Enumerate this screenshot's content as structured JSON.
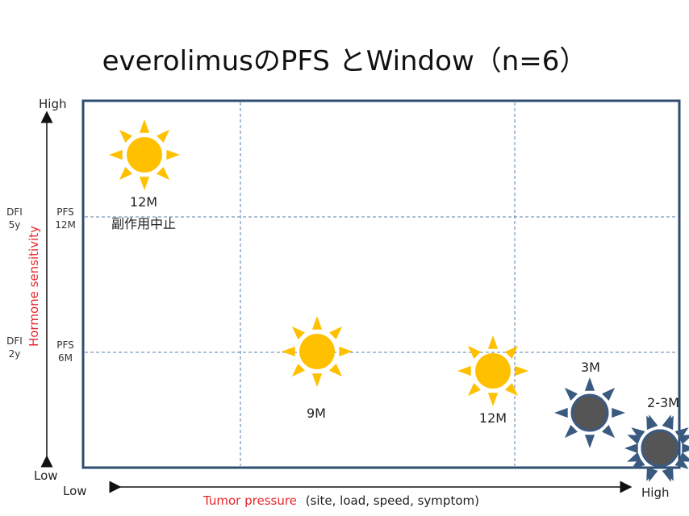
{
  "title": "everolimusのPFS とWindow（n=6）",
  "y_axis": {
    "label": "Hormone sensitivity",
    "high": "High",
    "low": "Low",
    "dfi_levels": [
      {
        "line1": "DFI",
        "line2": "5y"
      },
      {
        "line1": "DFI",
        "line2": "2y"
      }
    ],
    "pfs_levels": [
      {
        "line1": "PFS",
        "line2": "12M"
      },
      {
        "line1": "PFS",
        "line2": "6M"
      }
    ]
  },
  "x_axis": {
    "label": "Tumor pressure",
    "detail": "(site, load, speed, symptom)",
    "low": "Low",
    "high": "High"
  },
  "patients": [
    {
      "pfs": "12M",
      "note": "副作用中止",
      "icon": "sun-icon",
      "color": "#ffc000"
    },
    {
      "pfs": "9M",
      "note": "",
      "icon": "sun-icon",
      "color": "#ffc000"
    },
    {
      "pfs": "12M",
      "note": "",
      "icon": "sun-icon",
      "color": "#ffc000"
    },
    {
      "pfs": "3M",
      "note": "",
      "icon": "dark-sun-icon",
      "color": "#555555"
    },
    {
      "pfs": "2-3M",
      "note": "",
      "icon": "dark-sun-icon",
      "color": "#555555"
    },
    {
      "pfs": "",
      "note": "",
      "icon": "dark-sun-icon",
      "color": "#555555"
    }
  ],
  "colors": {
    "frame": "#2f4d70",
    "grid": "#5b7fa6",
    "sun_fill": "#ffc000",
    "sun_rays": "#ffc000",
    "dark_fill": "#555555",
    "dark_rays": "#3a5a80",
    "axis_label": "#e8262b"
  }
}
